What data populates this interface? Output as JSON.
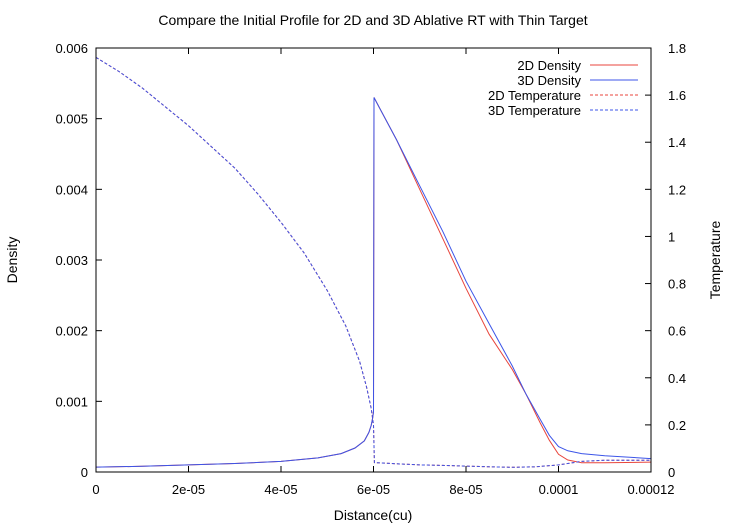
{
  "chart_data": {
    "type": "line",
    "title": "Compare the Initial Profile for 2D and 3D Ablative RT with Thin Target",
    "xlabel": "Distance(cu)",
    "ylabel": "Density",
    "y2label": "Temperature",
    "xlim": [
      0,
      0.00012
    ],
    "ylim": [
      0,
      0.006
    ],
    "y2lim": [
      0,
      1.8
    ],
    "x_ticks": [
      0,
      2e-05,
      4e-05,
      6e-05,
      8e-05,
      0.0001,
      0.00012
    ],
    "x_tick_labels": [
      "0",
      "2e-05",
      "4e-05",
      "6e-05",
      "8e-05",
      "0.0001",
      "0.00012"
    ],
    "y_ticks": [
      0,
      0.001,
      0.002,
      0.003,
      0.004,
      0.005,
      0.006
    ],
    "y_tick_labels": [
      "0",
      "0.001",
      "0.002",
      "0.003",
      "0.004",
      "0.005",
      "0.006"
    ],
    "y2_ticks": [
      0,
      0.2,
      0.4,
      0.6,
      0.8,
      1.0,
      1.2,
      1.4,
      1.6,
      1.8
    ],
    "y2_tick_labels": [
      "0",
      "0.2",
      "0.4",
      "0.6",
      "0.8",
      "1",
      "1.2",
      "1.4",
      "1.6",
      "1.8"
    ],
    "grid": false,
    "legend_position": "top-right",
    "series": [
      {
        "name": "2D Density",
        "axis": "left",
        "color": "#e8453c",
        "dash": "solid",
        "x": [
          0,
          1e-05,
          2e-05,
          3e-05,
          4e-05,
          4.8e-05,
          5.3e-05,
          5.6e-05,
          5.8e-05,
          5.9e-05,
          5.95e-05,
          5.98e-05,
          6e-05,
          6.01e-05,
          6.5e-05,
          7e-05,
          7.5e-05,
          8e-05,
          8.5e-05,
          9e-05,
          9.3e-05,
          9.6e-05,
          9.8e-05,
          0.0001,
          0.000102,
          0.000105,
          0.00011,
          0.00012
        ],
        "y": [
          7e-05,
          8e-05,
          0.0001,
          0.00012,
          0.00015,
          0.0002,
          0.00026,
          0.00034,
          0.00044,
          0.00056,
          0.00066,
          0.00076,
          0.00085,
          0.0053,
          0.0047,
          0.004,
          0.0033,
          0.0026,
          0.00195,
          0.00145,
          0.0011,
          0.0007,
          0.00045,
          0.00025,
          0.00017,
          0.00013,
          0.00013,
          0.00014
        ]
      },
      {
        "name": "3D Density",
        "axis": "left",
        "color": "#3c55e8",
        "dash": "solid",
        "x": [
          0,
          1e-05,
          2e-05,
          3e-05,
          4e-05,
          4.8e-05,
          5.3e-05,
          5.6e-05,
          5.8e-05,
          5.9e-05,
          5.95e-05,
          5.98e-05,
          6e-05,
          6.01e-05,
          6.5e-05,
          7e-05,
          7.5e-05,
          8e-05,
          8.5e-05,
          9e-05,
          9.3e-05,
          9.6e-05,
          9.8e-05,
          0.0001,
          0.000102,
          0.000105,
          0.00011,
          0.00012
        ],
        "y": [
          7e-05,
          8e-05,
          0.0001,
          0.00012,
          0.00015,
          0.0002,
          0.00026,
          0.00034,
          0.00044,
          0.00056,
          0.00066,
          0.00076,
          0.00085,
          0.0053,
          0.0047,
          0.00405,
          0.0034,
          0.0027,
          0.0021,
          0.0015,
          0.0011,
          0.00075,
          0.00052,
          0.00036,
          0.0003,
          0.00026,
          0.00023,
          0.00019
        ]
      },
      {
        "name": "2D Temperature",
        "axis": "right",
        "color": "#e8453c",
        "dash": "dashed",
        "x": [
          0,
          5e-06,
          1e-05,
          1.5e-05,
          2e-05,
          2.5e-05,
          3e-05,
          3.5e-05,
          4e-05,
          4.5e-05,
          5e-05,
          5.4e-05,
          5.7e-05,
          5.85e-05,
          5.95e-05,
          6e-05,
          6.02e-05,
          6.5e-05,
          7e-05,
          7.5e-05,
          8e-05,
          8.5e-05,
          9e-05,
          9.5e-05,
          0.0001,
          0.000105,
          0.00011,
          0.00012
        ],
        "y": [
          1.76,
          1.7,
          1.63,
          1.55,
          1.47,
          1.38,
          1.29,
          1.18,
          1.06,
          0.93,
          0.77,
          0.62,
          0.47,
          0.36,
          0.27,
          0.2,
          0.04,
          0.035,
          0.03,
          0.028,
          0.025,
          0.022,
          0.02,
          0.022,
          0.03,
          0.045,
          0.05,
          0.05
        ]
      },
      {
        "name": "3D Temperature",
        "axis": "right",
        "color": "#3c55e8",
        "dash": "dashed",
        "x": [
          0,
          5e-06,
          1e-05,
          1.5e-05,
          2e-05,
          2.5e-05,
          3e-05,
          3.5e-05,
          4e-05,
          4.5e-05,
          5e-05,
          5.4e-05,
          5.7e-05,
          5.85e-05,
          5.95e-05,
          6e-05,
          6.02e-05,
          6.5e-05,
          7e-05,
          7.5e-05,
          8e-05,
          8.5e-05,
          9e-05,
          9.5e-05,
          0.0001,
          0.000105,
          0.00011,
          0.00012
        ],
        "y": [
          1.76,
          1.7,
          1.63,
          1.55,
          1.47,
          1.38,
          1.29,
          1.18,
          1.06,
          0.93,
          0.77,
          0.62,
          0.47,
          0.36,
          0.27,
          0.2,
          0.04,
          0.035,
          0.03,
          0.028,
          0.025,
          0.022,
          0.02,
          0.022,
          0.03,
          0.045,
          0.05,
          0.05
        ]
      }
    ]
  }
}
